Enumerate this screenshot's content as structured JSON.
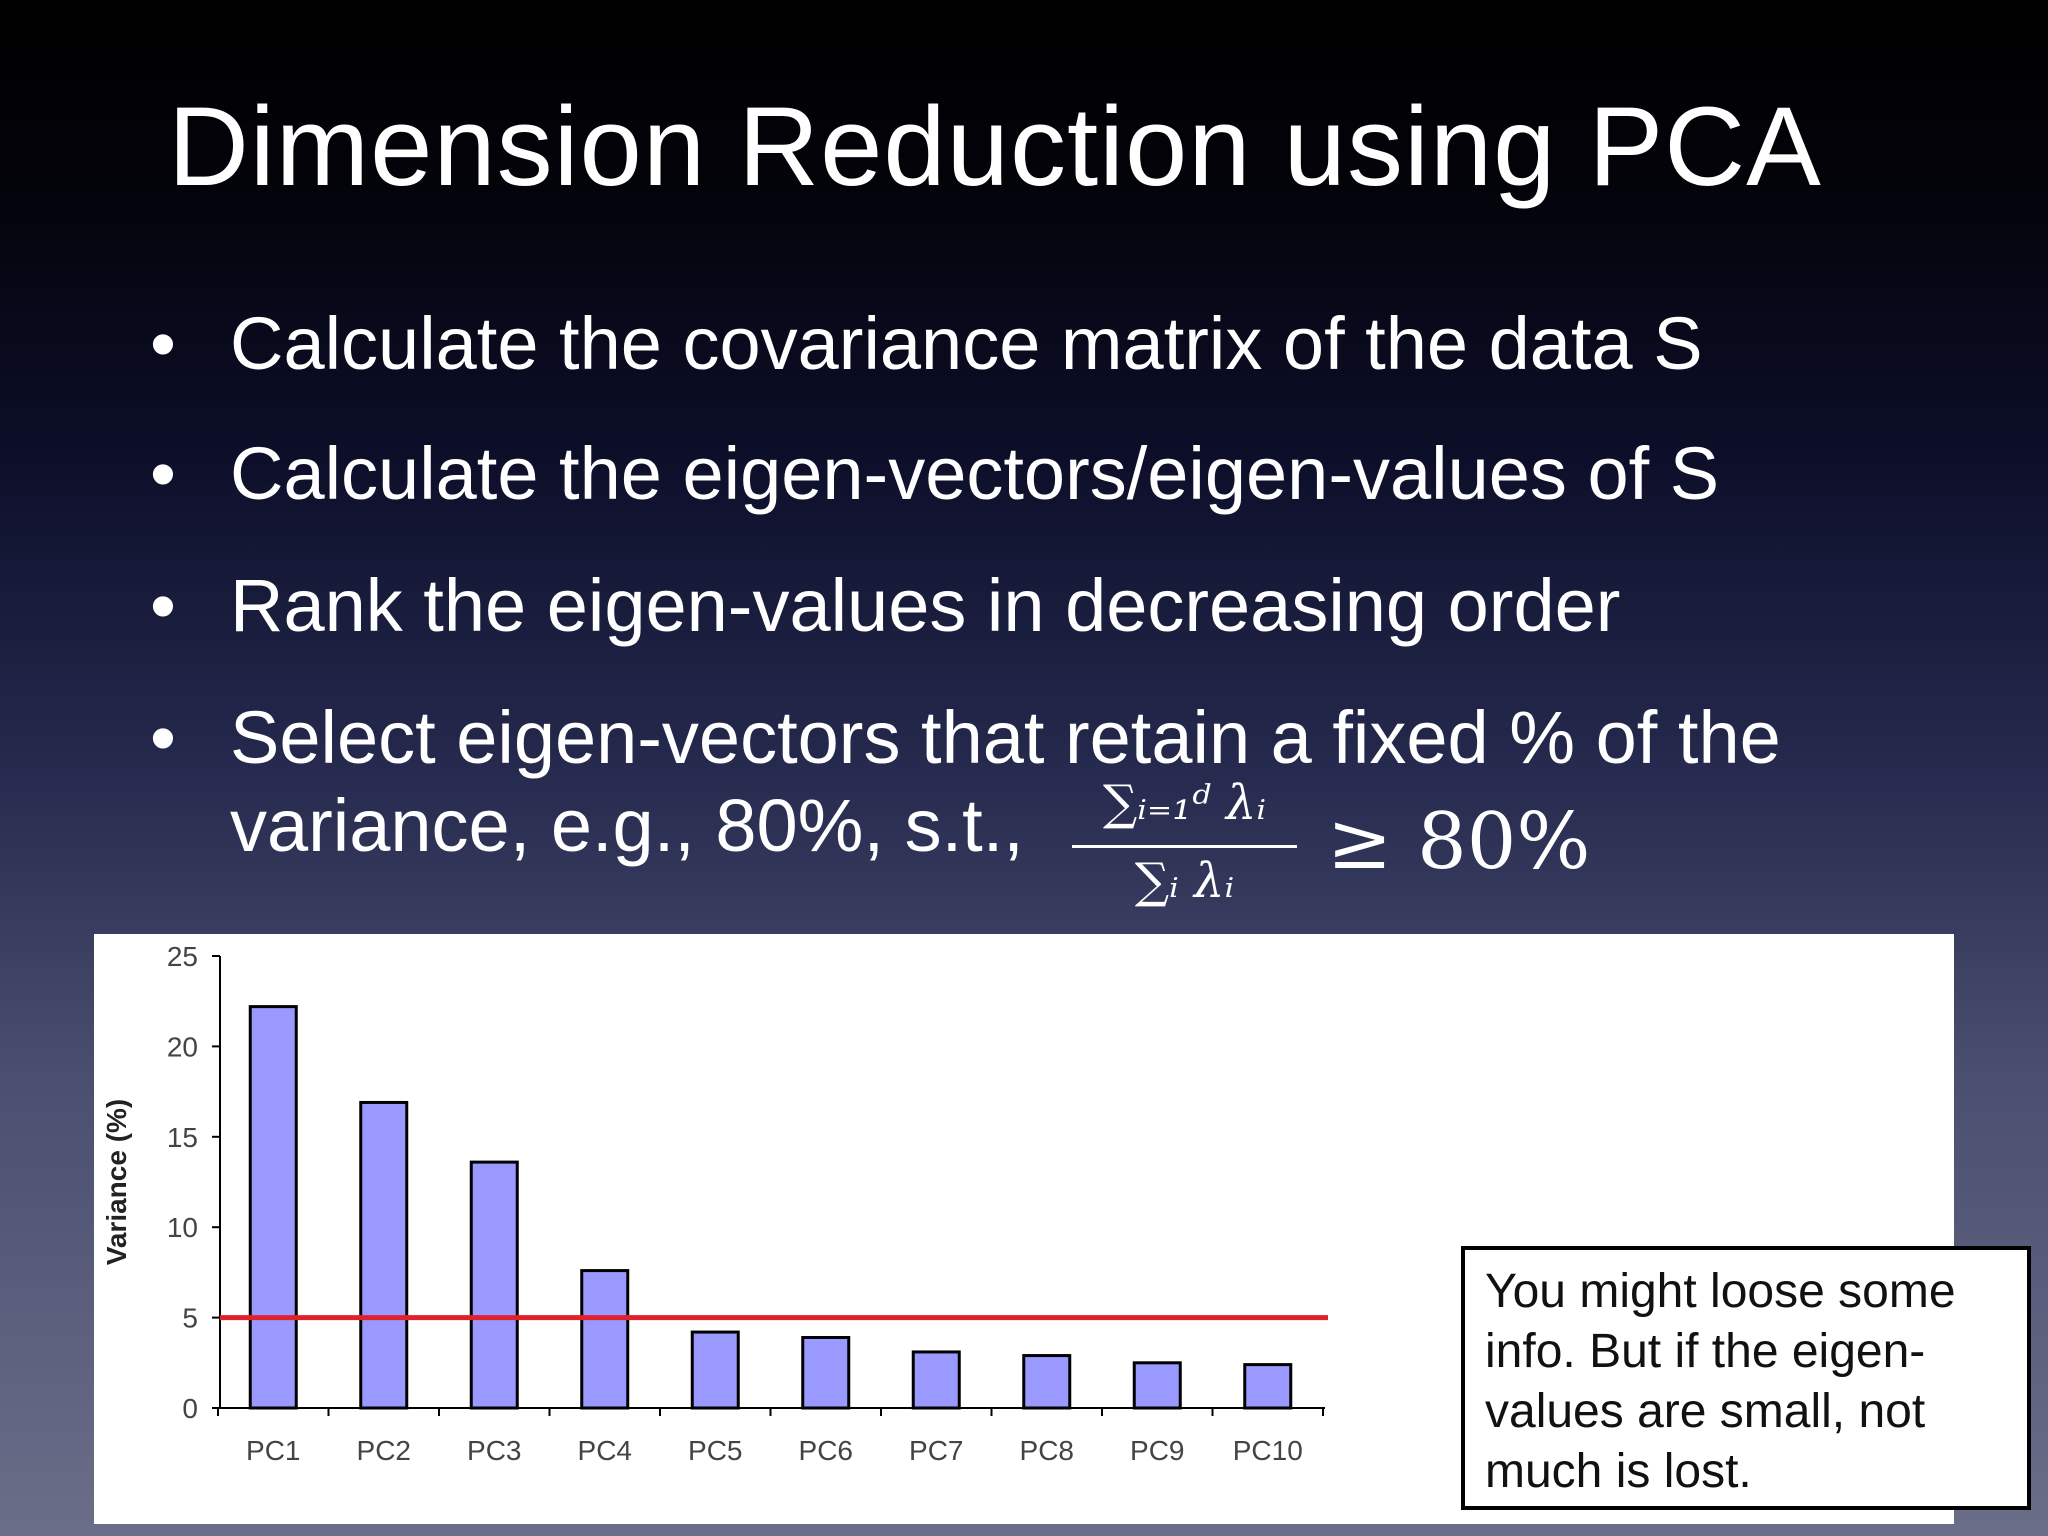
{
  "slide": {
    "title": "Dimension Reduction using PCA",
    "bullet_glyph": "•",
    "bullets": [
      "Calculate the covariance matrix of the data S",
      "Calculate the eigen-vectors/eigen-values of S",
      "Rank the eigen-values in decreasing order",
      "Select eigen-vectors that retain a fixed % of the"
    ],
    "bullet4_line2": "variance, e.g., 80%, s.t.,",
    "formula": {
      "numerator": "∑ᵢ₌₁ᵈ λᵢ",
      "denominator": "∑ᵢ λᵢ",
      "relation": "≥ 80%"
    }
  },
  "chart_data": {
    "type": "bar",
    "categories": [
      "PC1",
      "PC2",
      "PC3",
      "PC4",
      "PC5",
      "PC6",
      "PC7",
      "PC8",
      "PC9",
      "PC10"
    ],
    "values": [
      22.2,
      16.9,
      13.6,
      7.6,
      4.2,
      3.9,
      3.1,
      2.9,
      2.5,
      2.4
    ],
    "ylabel": "Variance (%)",
    "ylim": [
      0,
      25
    ],
    "yticks": [
      0,
      5,
      10,
      15,
      20,
      25
    ],
    "threshold": 5,
    "bar_color": "#9999ff",
    "threshold_color": "#e0202a",
    "annotation": "You might loose some info. But if the eigen-values are small, not much is lost."
  }
}
